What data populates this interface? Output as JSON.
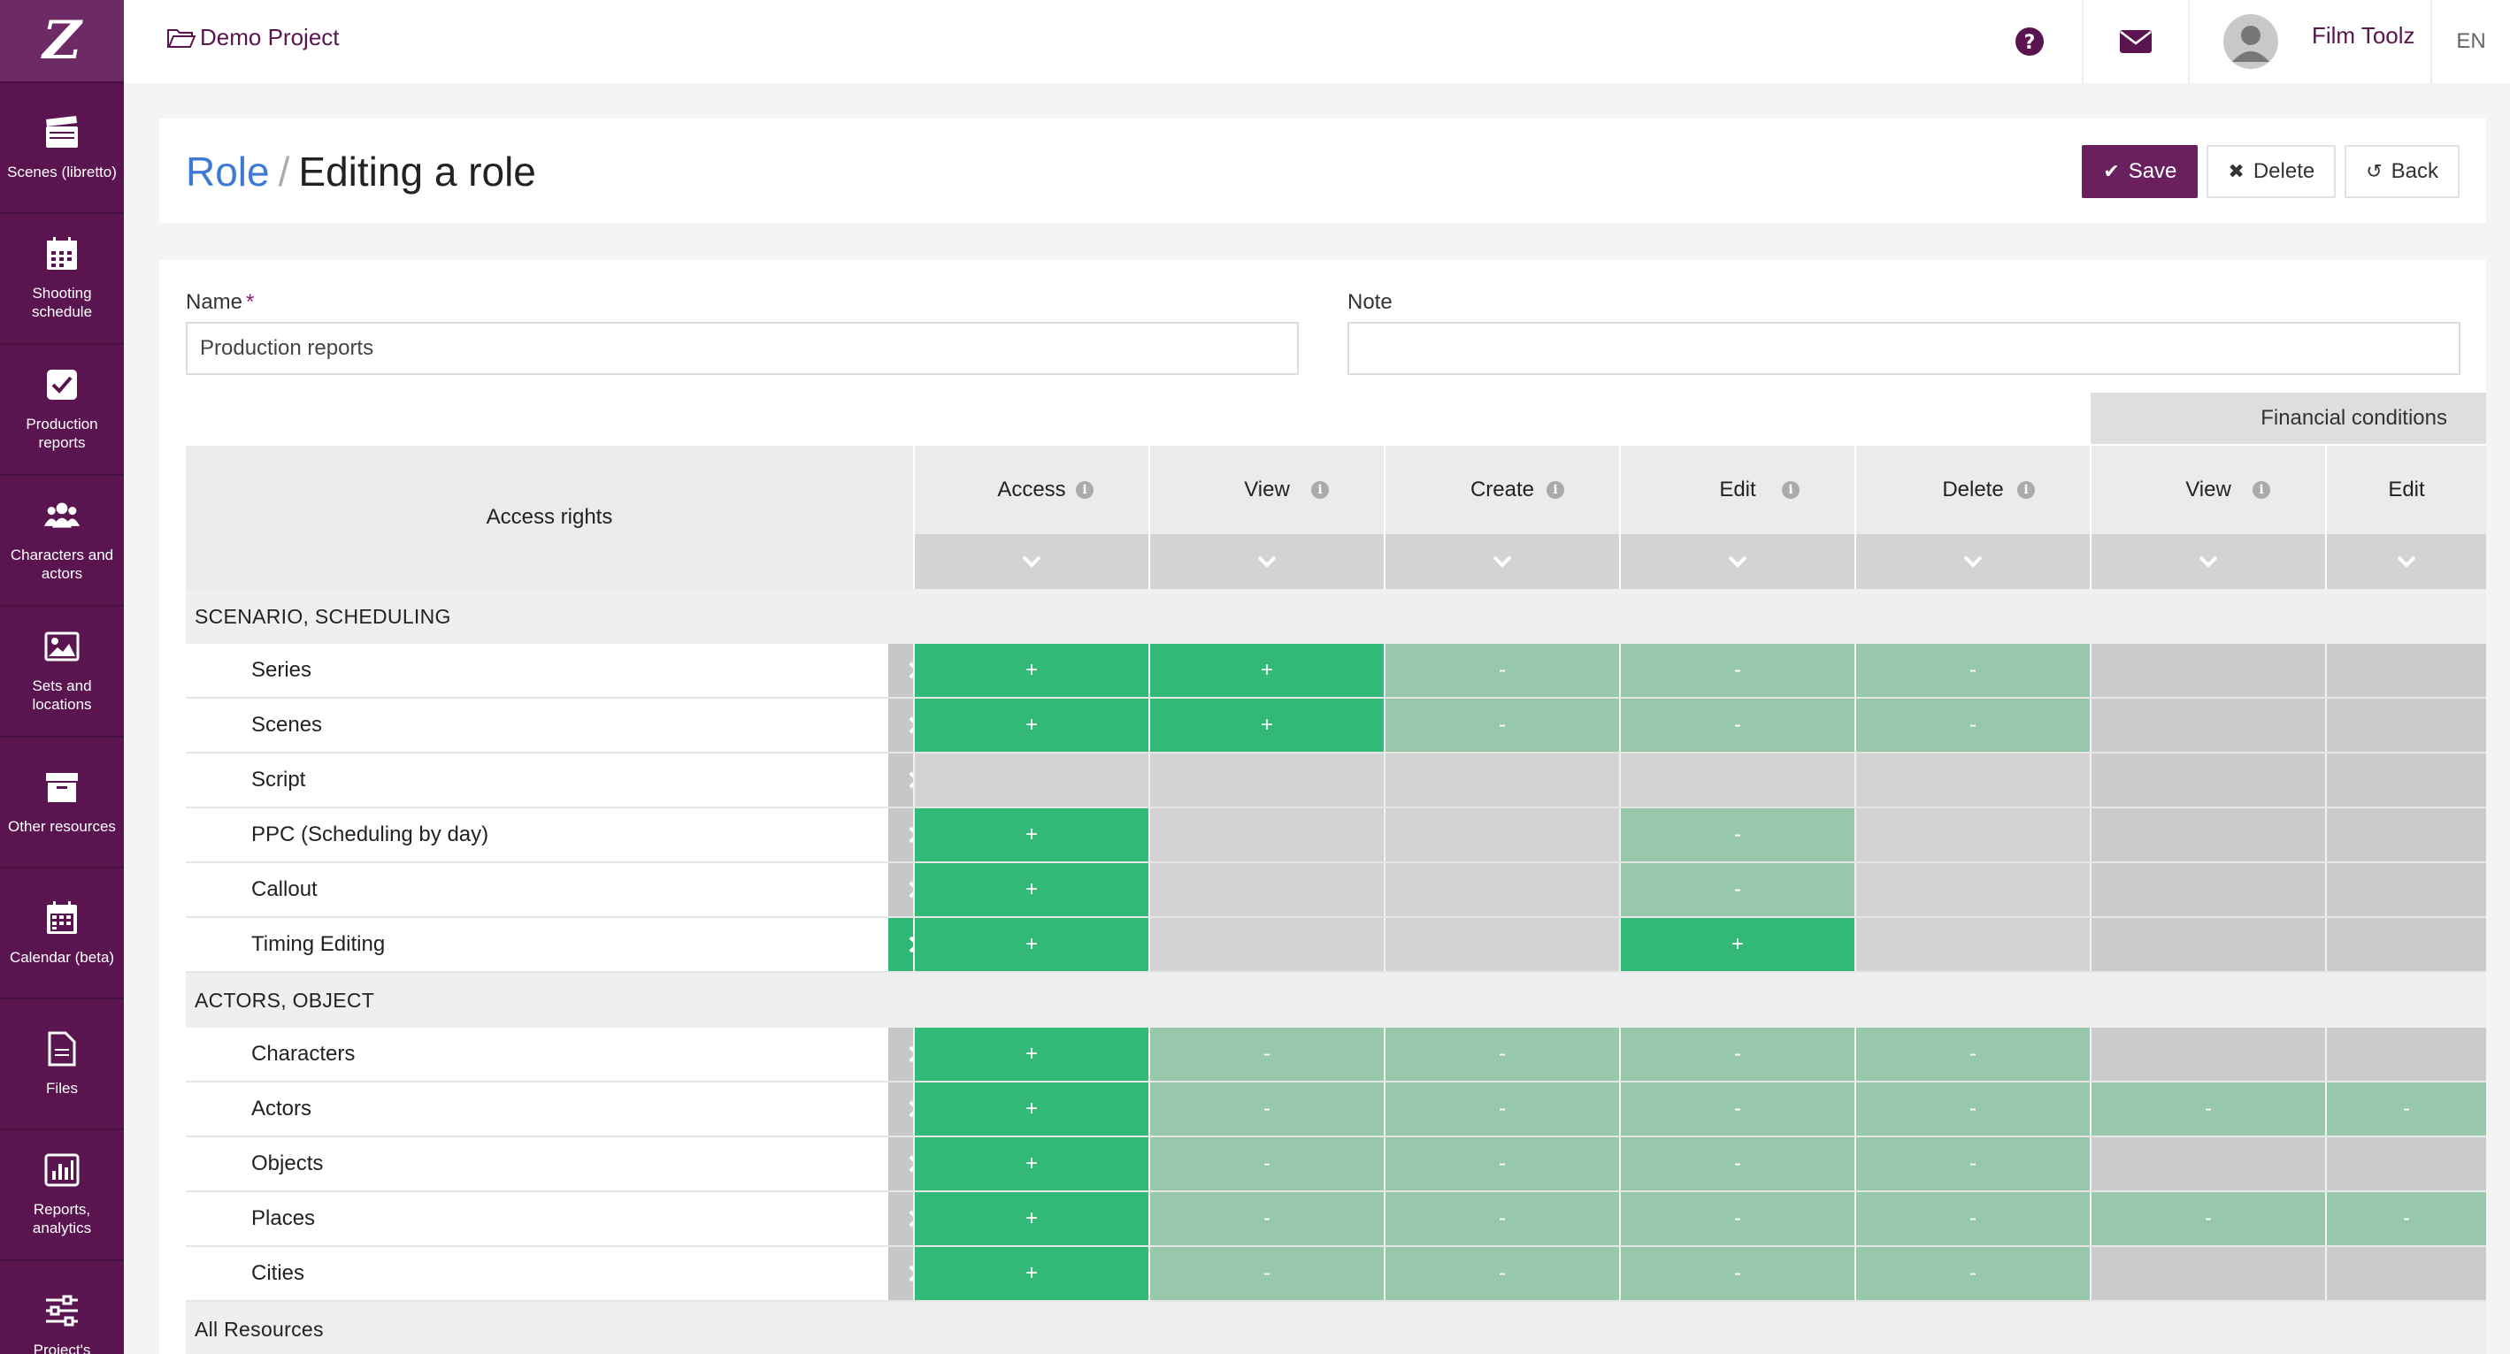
{
  "app": {
    "logo": "Z"
  },
  "sidebar": {
    "items": [
      {
        "label": "Scenes (libretto)",
        "icon": "clapperboard-icon"
      },
      {
        "label": "Shooting schedule",
        "icon": "calendar-grid-icon"
      },
      {
        "label": "Production reports",
        "icon": "check-square-icon"
      },
      {
        "label": "Characters and actors",
        "icon": "users-icon"
      },
      {
        "label": "Sets and locations",
        "icon": "image-icon"
      },
      {
        "label": "Other resources",
        "icon": "archive-box-icon"
      },
      {
        "label": "Calendar (beta)",
        "icon": "calendar-icon"
      },
      {
        "label": "Files",
        "icon": "file-icon"
      },
      {
        "label": "Reports, analytics",
        "icon": "bar-chart-icon"
      },
      {
        "label": "Project's",
        "icon": "sliders-icon"
      }
    ]
  },
  "topbar": {
    "project": "Demo Project",
    "user_name": "Film Toolz",
    "language": "EN"
  },
  "header": {
    "breadcrumb_root": "Role",
    "breadcrumb_sep": "/",
    "title": "Editing a role",
    "save_label": "Save",
    "delete_label": "Delete",
    "back_label": "Back"
  },
  "form": {
    "name_label": "Name",
    "name_required": "*",
    "name_value": "Production reports",
    "note_label": "Note",
    "note_value": ""
  },
  "table": {
    "access_rights_label": "Access rights",
    "financial_header": "Financial conditions",
    "columns": [
      "Access",
      "View",
      "Create",
      "Edit",
      "Delete",
      "View",
      "Edit"
    ],
    "sections": [
      {
        "title": "SCENARIO, SCHEDULING",
        "rows": [
          {
            "name": "Series",
            "active": false,
            "cells": [
              "full:+",
              "full:+",
              "part:-",
              "part:-",
              "part:-",
              "dark:",
              "dark:"
            ]
          },
          {
            "name": "Scenes",
            "active": false,
            "cells": [
              "full:+",
              "full:+",
              "part:-",
              "part:-",
              "part:-",
              "dark:",
              "dark:"
            ]
          },
          {
            "name": "Script",
            "active": false,
            "cells": [
              "none:",
              "none:",
              "none:",
              "none:",
              "none:",
              "dark:",
              "dark:"
            ]
          },
          {
            "name": "PPC (Scheduling by day)",
            "active": false,
            "cells": [
              "full:+",
              "none:",
              "none:",
              "part:-",
              "none:",
              "dark:",
              "dark:"
            ]
          },
          {
            "name": "Callout",
            "active": false,
            "cells": [
              "full:+",
              "none:",
              "none:",
              "part:-",
              "none:",
              "dark:",
              "dark:"
            ]
          },
          {
            "name": "Timing Editing",
            "active": true,
            "cells": [
              "full:+",
              "none:",
              "none:",
              "full:+",
              "none:",
              "dark:",
              "dark:"
            ]
          }
        ]
      },
      {
        "title": "ACTORS, OBJECT",
        "rows": [
          {
            "name": "Characters",
            "active": false,
            "cells": [
              "full:+",
              "part:-",
              "part:-",
              "part:-",
              "part:-",
              "dark:",
              "dark:"
            ]
          },
          {
            "name": "Actors",
            "active": false,
            "cells": [
              "full:+",
              "part:-",
              "part:-",
              "part:-",
              "part:-",
              "part:-",
              "part:-"
            ]
          },
          {
            "name": "Objects",
            "active": false,
            "cells": [
              "full:+",
              "part:-",
              "part:-",
              "part:-",
              "part:-",
              "dark:",
              "dark:"
            ]
          },
          {
            "name": "Places",
            "active": false,
            "cells": [
              "full:+",
              "part:-",
              "part:-",
              "part:-",
              "part:-",
              "part:-",
              "part:-"
            ]
          },
          {
            "name": "Cities",
            "active": false,
            "cells": [
              "full:+",
              "part:-",
              "part:-",
              "part:-",
              "part:-",
              "dark:",
              "dark:"
            ]
          }
        ]
      },
      {
        "title": "All Resources",
        "rows": []
      }
    ]
  },
  "colors": {
    "brand": "#5a1550",
    "accent": "#6a1f5f",
    "link": "#3d7ad6",
    "granted": "#32b877",
    "partial": "#98c8ab"
  }
}
